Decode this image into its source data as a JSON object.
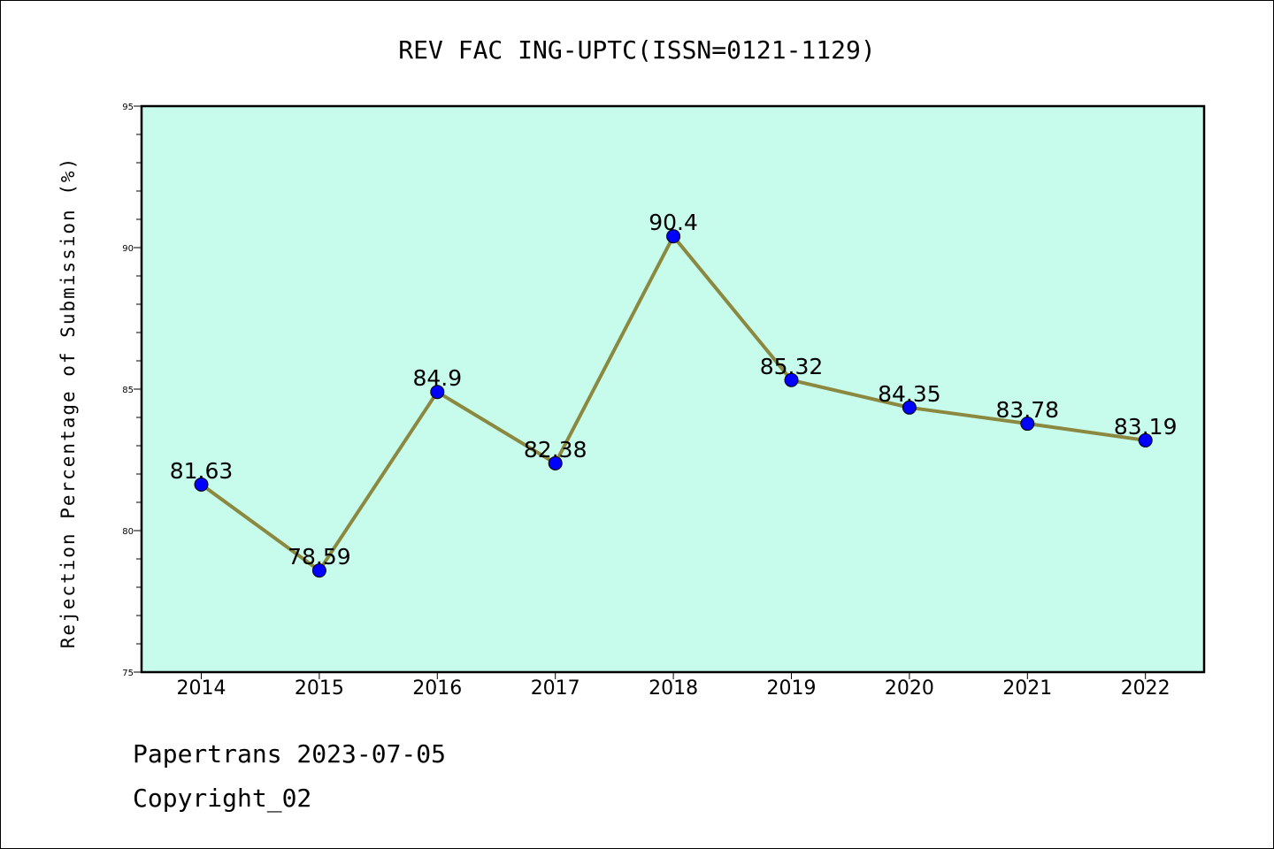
{
  "chart_data": {
    "type": "line",
    "title": "REV FAC ING-UPTC(ISSN=0121-1129)",
    "xlabel": "",
    "ylabel": "Rejection Percentage of Submission (%)",
    "categories": [
      "2014",
      "2015",
      "2016",
      "2017",
      "2018",
      "2019",
      "2020",
      "2021",
      "2022"
    ],
    "series": [
      {
        "values": [
          81.63,
          78.59,
          84.9,
          82.38,
          90.4,
          85.32,
          84.35,
          83.78,
          83.19
        ],
        "data_labels": [
          "81.63",
          "78.59",
          "84.9",
          "82.38",
          "90.4",
          "85.32",
          "84.35",
          "83.78",
          "83.19"
        ],
        "line_color": "#8B8840",
        "marker_color": "#0000FF"
      }
    ],
    "ylim": [
      75,
      95
    ],
    "yticks": [
      "75",
      "80",
      "85",
      "90",
      "95"
    ],
    "grid": false,
    "plot_background": "#C7FCEC"
  },
  "footer": {
    "line1": "Papertrans 2023-07-05",
    "line2": "Copyright_02"
  }
}
